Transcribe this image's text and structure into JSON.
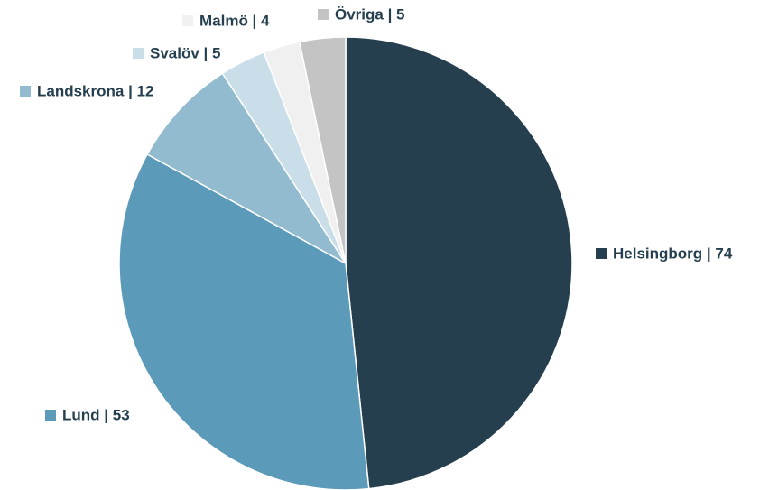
{
  "chart_data": {
    "type": "pie",
    "categories": [
      "Helsingborg | 74",
      "Lund | 53",
      "Landskrona | 12",
      "Svalöv | 5",
      "Malmö | 4",
      "Övriga | 5"
    ],
    "values": [
      74,
      53,
      12,
      5,
      4,
      5
    ],
    "colors": [
      "#253f4f",
      "#5b9ab8",
      "#93bbcf",
      "#cadeea",
      "#f0f0f0",
      "#c4c4c4"
    ]
  }
}
